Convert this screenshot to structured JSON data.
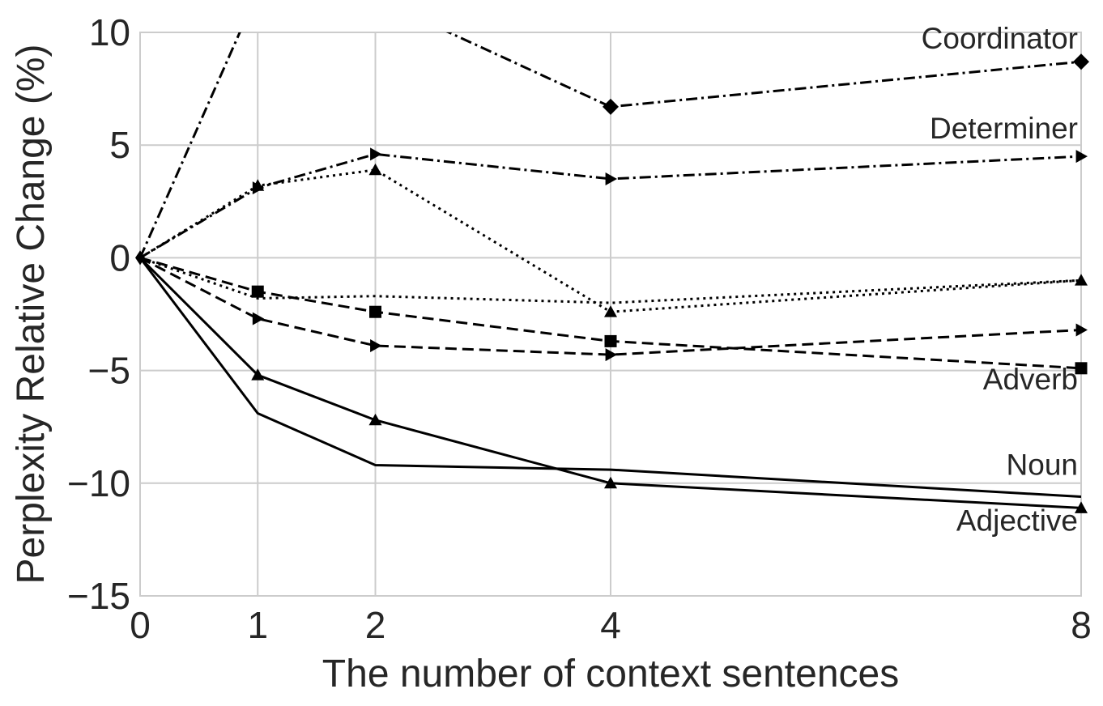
{
  "chart_data": {
    "type": "line",
    "xlabel": "The number of context sentences",
    "ylabel": "Perplexity Relative Change (%)",
    "xlim": [
      0,
      8
    ],
    "ylim": [
      -15,
      10
    ],
    "x_ticks": [
      0,
      1,
      2,
      4,
      8
    ],
    "y_ticks": [
      -15,
      -10,
      -5,
      0,
      5,
      10
    ],
    "y_tick_labels": [
      "−15",
      "−10",
      "−5",
      "0",
      "5",
      "10"
    ],
    "grid": true,
    "series": [
      {
        "name": "Coordinator",
        "style": "dashdot",
        "marker": "diamond",
        "x": [
          0,
          1,
          2,
          4,
          8
        ],
        "y": [
          0,
          11.8,
          11.5,
          6.7,
          8.7
        ]
      },
      {
        "name": "Determiner",
        "style": "dashdot",
        "marker": "triangle-right",
        "x": [
          0,
          1,
          2,
          4,
          8
        ],
        "y": [
          0,
          3.1,
          4.6,
          3.5,
          4.5
        ]
      },
      {
        "style": "dotted",
        "marker": "triangle-up",
        "x": [
          0,
          1,
          2,
          4,
          8
        ],
        "y": [
          0,
          3.2,
          3.9,
          -2.4,
          -1.0
        ]
      },
      {
        "style": "dotted",
        "marker": "none",
        "x": [
          0,
          1,
          2,
          4,
          8
        ],
        "y": [
          0,
          -1.8,
          -1.7,
          -2.0,
          -1.0
        ]
      },
      {
        "style": "dashed",
        "marker": "triangle-right",
        "x": [
          0,
          1,
          2,
          4,
          8
        ],
        "y": [
          0,
          -2.7,
          -3.9,
          -4.3,
          -3.2
        ]
      },
      {
        "name": "Adverb",
        "style": "dashed",
        "marker": "square",
        "x": [
          0,
          1,
          2,
          4,
          8
        ],
        "y": [
          0,
          -1.5,
          -2.4,
          -3.7,
          -4.9
        ]
      },
      {
        "name": "Noun",
        "style": "solid",
        "marker": "none",
        "x": [
          0,
          1,
          2,
          4,
          8
        ],
        "y": [
          0,
          -6.9,
          -9.2,
          -9.4,
          -10.6
        ]
      },
      {
        "name": "Adjective",
        "style": "solid",
        "marker": "triangle-up",
        "x": [
          0,
          1,
          2,
          4,
          8
        ],
        "y": [
          0,
          -5.2,
          -7.2,
          -10.0,
          -11.1
        ]
      }
    ]
  },
  "colors": {
    "line": "#000000",
    "grid": "#cccccc",
    "text": "#262626"
  }
}
